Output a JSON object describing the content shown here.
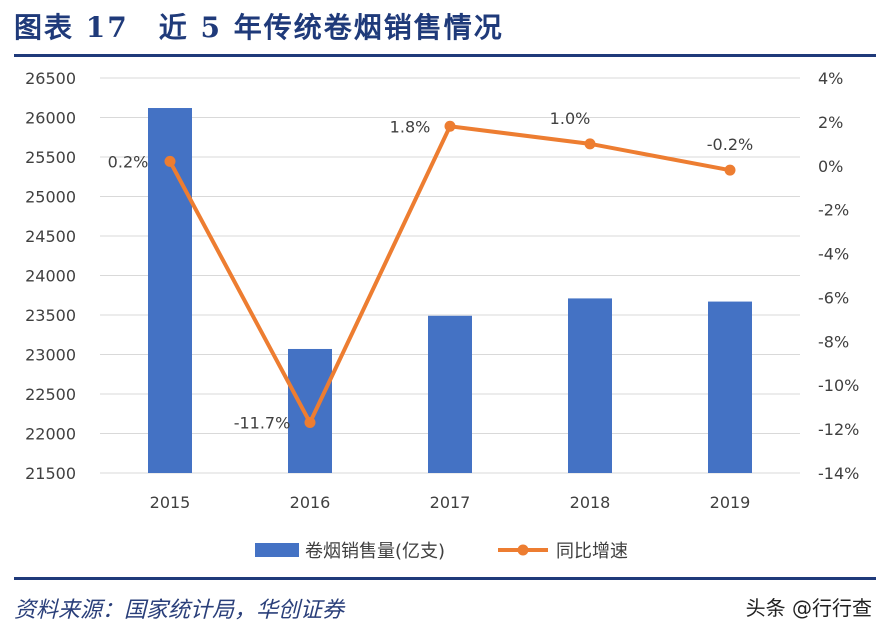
{
  "title": "图表 17　近 5 年传统卷烟销售情况",
  "source": "资料来源：国家统计局，华创证券",
  "watermark": "头条 @行行查",
  "chart_data": {
    "type": "bar+line",
    "categories": [
      "2015",
      "2016",
      "2017",
      "2018",
      "2019"
    ],
    "series": [
      {
        "name": "卷烟销售量(亿支)",
        "type": "bar",
        "axis": "left",
        "color": "#4472c4",
        "values": [
          26120,
          23070,
          23490,
          23710,
          23670
        ]
      },
      {
        "name": "同比增速",
        "type": "line",
        "axis": "right",
        "color": "#ed7d31",
        "values": [
          0.2,
          -11.7,
          1.8,
          1.0,
          -0.2
        ],
        "labels": [
          "0.2%",
          "-11.7%",
          "1.8%",
          "1.0%",
          "-0.2%"
        ]
      }
    ],
    "left_axis": {
      "ylim": [
        21500,
        26500
      ],
      "ticks": [
        21500,
        22000,
        22500,
        23000,
        23500,
        24000,
        24500,
        25000,
        25500,
        26000,
        26500
      ]
    },
    "right_axis": {
      "ylim": [
        -14,
        4
      ],
      "ticks": [
        "-14%",
        "-12%",
        "-10%",
        "-8%",
        "-6%",
        "-4%",
        "-2%",
        "0%",
        "2%",
        "4%"
      ]
    },
    "grid": true,
    "legend": "bottom"
  }
}
